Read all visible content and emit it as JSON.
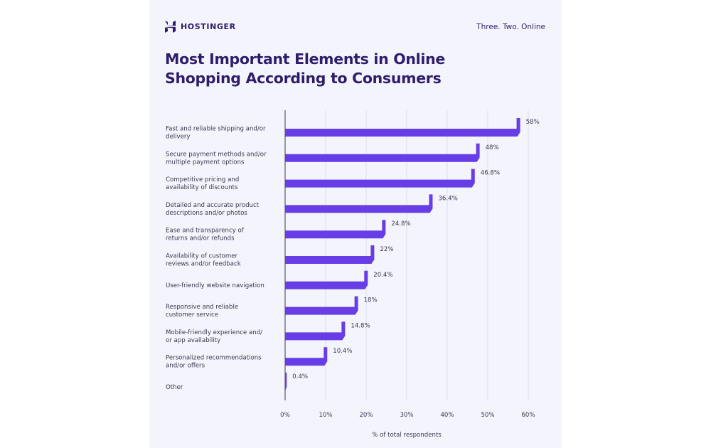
{
  "header": {
    "brand": "HOSTINGER",
    "tagline": "Three. Two. Online",
    "logo_icon": "hostinger-h-logo"
  },
  "colors": {
    "bar": "#673de6",
    "title": "#2f1c6a",
    "grid": "#dcdde8",
    "background": "#f4f5fc"
  },
  "chart_data": {
    "type": "bar",
    "orientation": "horizontal",
    "title": "Most Important Elements in Online Shopping According to Consumers",
    "xlabel": "% of total respondents",
    "ylabel": "",
    "xlim": [
      0,
      60
    ],
    "xticks": [
      "0%",
      "10%",
      "20%",
      "30%",
      "40%",
      "50%",
      "60%"
    ],
    "grid": true,
    "categories": [
      [
        "Fast and reliable shipping and/or",
        "delivery"
      ],
      [
        "Secure payment methods and/or",
        "multiple payment options"
      ],
      [
        "Competitive pricing and",
        "availability of discounts"
      ],
      [
        "Detailed and accurate product",
        "descriptions and/or photos"
      ],
      [
        "Ease and transparency of",
        "returns and/or refunds"
      ],
      [
        "Availability of customer",
        "reviews and/or feedback"
      ],
      [
        "User-friendly website navigation"
      ],
      [
        "Responsive and reliable",
        "customer service"
      ],
      [
        "Mobile-friendly experience and/",
        "or app availability"
      ],
      [
        "Personalized recommendations",
        "and/or offers"
      ],
      [
        "Other"
      ]
    ],
    "values": [
      58,
      48,
      46.8,
      36.4,
      24.8,
      22,
      20.4,
      18,
      14.8,
      10.4,
      0.4
    ],
    "value_labels": [
      "58%",
      "48%",
      "46.8%",
      "36.4%",
      "24.8%",
      "22%",
      "20.4%",
      "18%",
      "14.8%",
      "10.4%",
      "0.4%"
    ]
  }
}
